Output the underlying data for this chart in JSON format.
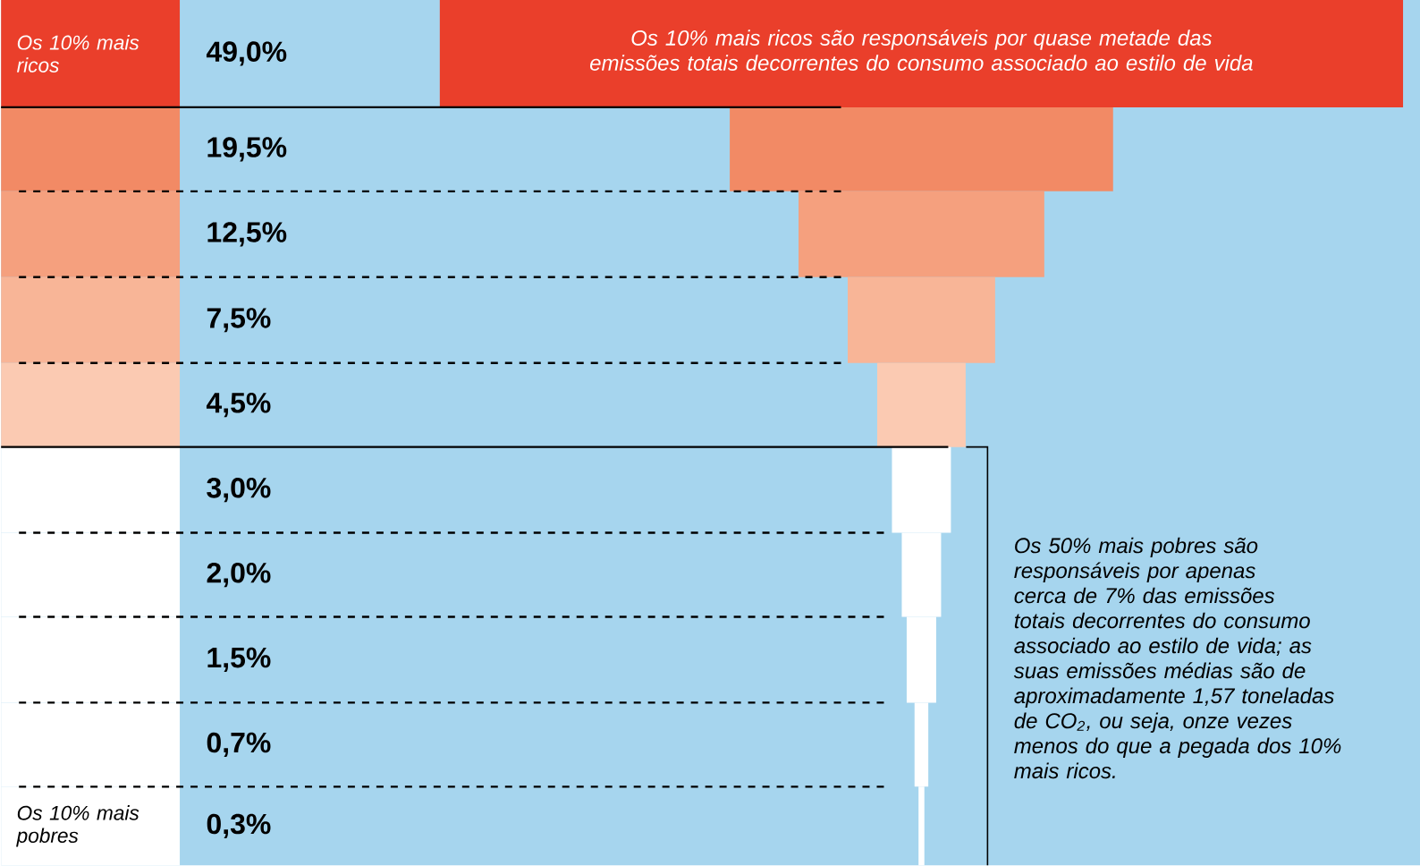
{
  "chart_data": {
    "type": "other",
    "categories": [
      "Os 10% mais ricos",
      null,
      null,
      null,
      null,
      null,
      null,
      null,
      null,
      "Os 10% mais pobres"
    ],
    "values": [
      49.0,
      19.5,
      12.5,
      7.5,
      4.5,
      3.0,
      2.0,
      1.5,
      0.7,
      0.3
    ],
    "value_labels": [
      "49,0%",
      "19,5%",
      "12,5%",
      "7,5%",
      "4,5%",
      "3,0%",
      "2,0%",
      "1,5%",
      "0,7%",
      "0,3%"
    ],
    "colors": [
      "#ea3f2b",
      "#f28a65",
      "#f5a07e",
      "#f8b597",
      "#fbcab2",
      "#ffffff",
      "#ffffff",
      "#ffffff",
      "#ffffff",
      "#ffffff"
    ],
    "annotations": [
      "Os 10% mais ricos são responsáveis por quase metade das emissões totais decorrentes do consumo associado ao estilo de vida",
      "Os 50% mais pobres são responsáveis por apenas cerca de 7% das emissões totais decorrentes do consumo associado ao estilo de vida; as suas emissões médias são de aproximadamente 1,57 toneladas de CO$_{2}$, ou seja, onze vezes menos do que a pegada dos 10% mais ricos."
    ]
  }
}
